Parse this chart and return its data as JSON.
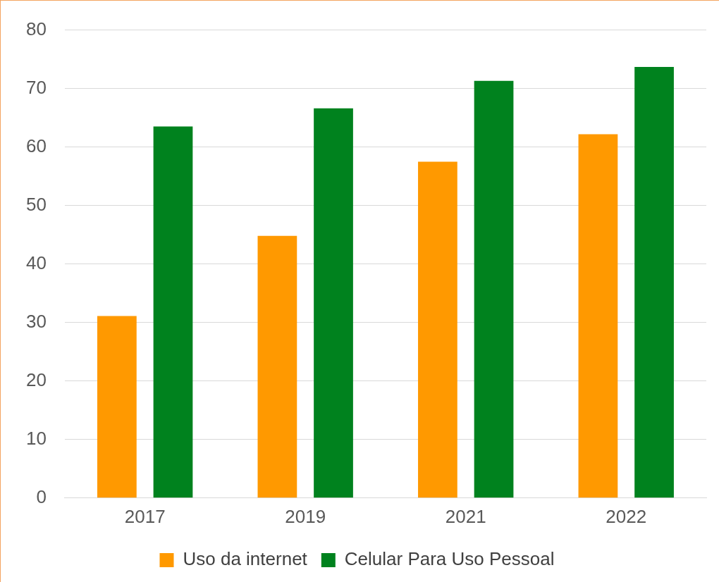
{
  "chart_data": {
    "type": "bar",
    "categories": [
      "2017",
      "2019",
      "2021",
      "2022"
    ],
    "series": [
      {
        "name": "Uso da internet",
        "color": "#ff9900",
        "values": [
          31.1,
          44.8,
          57.5,
          62.2
        ]
      },
      {
        "name": "Celular Para Uso Pessoal",
        "color": "#00821e",
        "values": [
          63.5,
          66.6,
          71.3,
          73.7
        ]
      }
    ],
    "ylim": [
      0,
      80
    ],
    "yticks": [
      0,
      10,
      20,
      30,
      40,
      50,
      60,
      70,
      80
    ],
    "grid": "y",
    "legend": "bottom"
  }
}
